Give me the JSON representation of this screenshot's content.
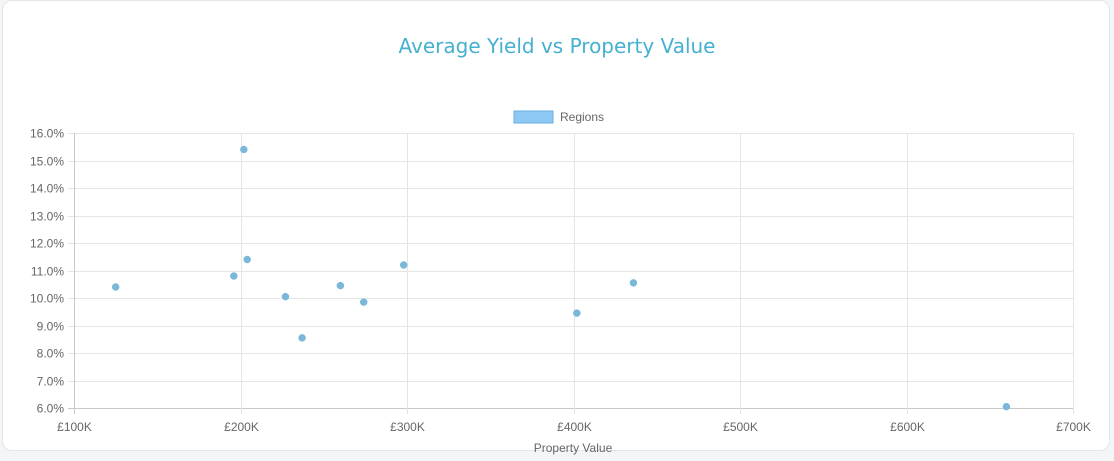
{
  "chart_data": {
    "type": "scatter",
    "title": "Average Yield vs Property Value",
    "xlabel": "Property Value",
    "ylabel": "",
    "xlim": [
      100000,
      700000
    ],
    "ylim": [
      6.0,
      16.0
    ],
    "x_ticks": [
      "£100K",
      "£200K",
      "£300K",
      "£400K",
      "£500K",
      "£600K",
      "£700K"
    ],
    "x_tick_values": [
      100000,
      200000,
      300000,
      400000,
      500000,
      600000,
      700000
    ],
    "y_ticks": [
      "16.0%",
      "15.0%",
      "14.0%",
      "13.0%",
      "12.0%",
      "11.0%",
      "10.0%",
      "9.0%",
      "8.0%",
      "7.0%",
      "6.0%"
    ],
    "y_tick_values": [
      16,
      15,
      14,
      13,
      12,
      11,
      10,
      9,
      8,
      7,
      6
    ],
    "grid": true,
    "legend_position": "top",
    "series": [
      {
        "name": "Regions",
        "color": "#7ab8d9",
        "legend_fill": "#8ec9f5",
        "legend_stroke": "#6aaee0",
        "points": [
          {
            "x": 125000,
            "y": 10.4
          },
          {
            "x": 196000,
            "y": 10.8
          },
          {
            "x": 202000,
            "y": 15.4
          },
          {
            "x": 204000,
            "y": 11.4
          },
          {
            "x": 227000,
            "y": 10.05
          },
          {
            "x": 237000,
            "y": 8.55
          },
          {
            "x": 260000,
            "y": 10.45
          },
          {
            "x": 274000,
            "y": 9.85
          },
          {
            "x": 298000,
            "y": 11.2
          },
          {
            "x": 402000,
            "y": 9.45
          },
          {
            "x": 436000,
            "y": 10.55
          },
          {
            "x": 660000,
            "y": 6.05
          }
        ]
      }
    ]
  }
}
